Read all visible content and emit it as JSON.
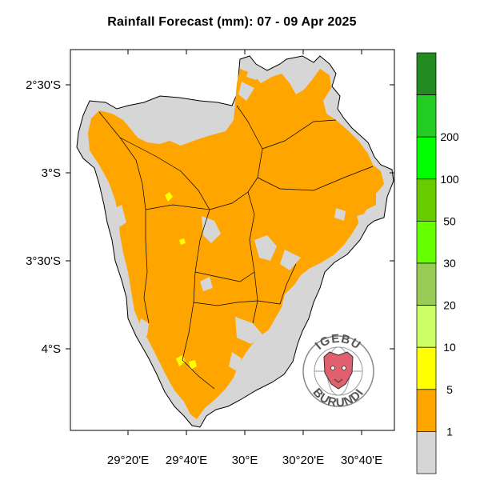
{
  "title": "Rainfall Forecast (mm): 07 - 09 Apr  2025",
  "lat_ticks": [
    "2°30'S",
    "3°S",
    "3°30'S",
    "4°S"
  ],
  "lon_ticks": [
    "29°20'E",
    "29°40'E",
    "30°E",
    "30°20'E",
    "30°40'E"
  ],
  "colorbar": {
    "levels": [
      "1",
      "5",
      "10",
      "20",
      "30",
      "50",
      "100",
      "200"
    ],
    "colors": [
      "#d6d6d6",
      "#ffa500",
      "#ffff00",
      "#ccff66",
      "#99cc55",
      "#66ff00",
      "#66cc00",
      "#00ff00",
      "#22cc22",
      "#228b22"
    ]
  },
  "logo": {
    "top_text": "IGEBU",
    "bottom_text": "BURUNDI"
  },
  "legend_meaning": {
    "gray": "< 1 mm",
    "orange": "1 - 5 mm",
    "yellow": "5 - 10 mm"
  }
}
